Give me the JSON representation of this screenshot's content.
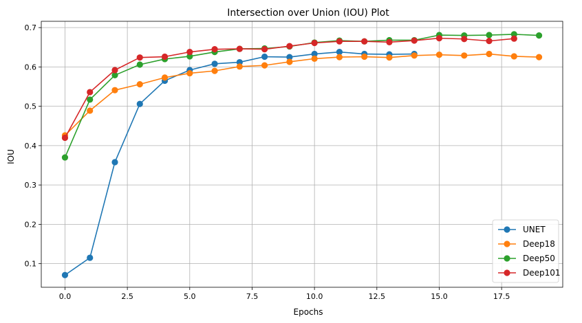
{
  "chart_data": {
    "type": "line",
    "title": "Intersection over Union (IOU) Plot",
    "xlabel": "Epochs",
    "ylabel": "IOU",
    "xlim": [
      -0.95,
      19.95
    ],
    "ylim": [
      0.04,
      0.716
    ],
    "xticks": [
      0.0,
      2.5,
      5.0,
      7.5,
      10.0,
      12.5,
      15.0,
      17.5
    ],
    "xtick_labels": [
      "0.0",
      "2.5",
      "5.0",
      "7.5",
      "10.0",
      "12.5",
      "15.0",
      "17.5"
    ],
    "yticks": [
      0.1,
      0.2,
      0.3,
      0.4,
      0.5,
      0.6,
      0.7
    ],
    "ytick_labels": [
      "0.1",
      "0.2",
      "0.3",
      "0.4",
      "0.5",
      "0.6",
      "0.7"
    ],
    "grid": true,
    "legend_position": "bottom-right",
    "series": [
      {
        "name": "UNET",
        "color": "#1f77b4",
        "x": [
          0,
          1,
          2,
          3,
          4,
          5,
          6,
          7,
          8,
          9,
          10,
          11,
          12,
          13,
          14
        ],
        "values": [
          0.071,
          0.115,
          0.358,
          0.506,
          0.565,
          0.592,
          0.608,
          0.612,
          0.626,
          0.625,
          0.633,
          0.638,
          0.633,
          0.632,
          0.633
        ]
      },
      {
        "name": "Deep18",
        "color": "#ff7f0e",
        "x": [
          0,
          1,
          2,
          3,
          4,
          5,
          6,
          7,
          8,
          9,
          10,
          11,
          12,
          13,
          14,
          15,
          16,
          17,
          18,
          19
        ],
        "values": [
          0.426,
          0.489,
          0.541,
          0.556,
          0.573,
          0.584,
          0.59,
          0.601,
          0.604,
          0.613,
          0.621,
          0.625,
          0.626,
          0.624,
          0.629,
          0.631,
          0.629,
          0.633,
          0.627,
          0.625
        ]
      },
      {
        "name": "Deep50",
        "color": "#2ca02c",
        "x": [
          0,
          1,
          2,
          3,
          4,
          5,
          6,
          7,
          8,
          9,
          10,
          11,
          12,
          13,
          14,
          15,
          16,
          17,
          18,
          19
        ],
        "values": [
          0.37,
          0.517,
          0.579,
          0.606,
          0.62,
          0.627,
          0.638,
          0.646,
          0.647,
          0.652,
          0.662,
          0.667,
          0.665,
          0.668,
          0.668,
          0.681,
          0.68,
          0.681,
          0.683,
          0.68
        ]
      },
      {
        "name": "Deep101",
        "color": "#d62728",
        "x": [
          0,
          1,
          2,
          3,
          4,
          5,
          6,
          7,
          8,
          9,
          10,
          11,
          12,
          13,
          14,
          15,
          16,
          17,
          18
        ],
        "values": [
          0.42,
          0.536,
          0.592,
          0.624,
          0.626,
          0.638,
          0.645,
          0.646,
          0.645,
          0.653,
          0.661,
          0.665,
          0.665,
          0.663,
          0.667,
          0.673,
          0.671,
          0.666,
          0.672
        ]
      }
    ]
  }
}
